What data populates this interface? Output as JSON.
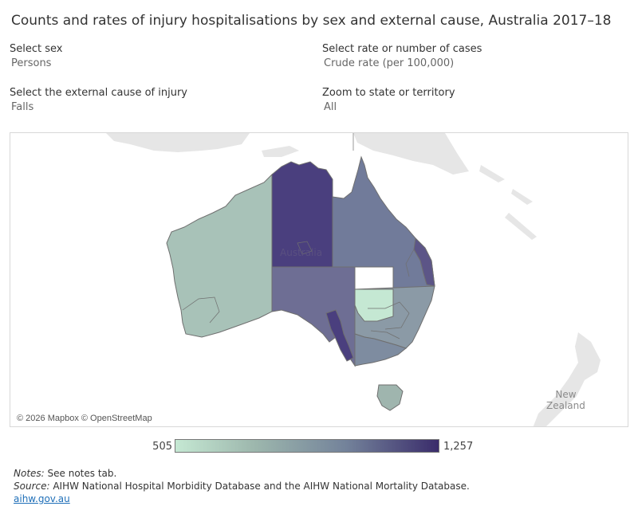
{
  "title": "Counts and rates of injury hospitalisations by sex and external cause, Australia 2017–18",
  "filters": {
    "sex": {
      "label": "Select sex",
      "value": "Persons"
    },
    "rate": {
      "label": "Select rate or number of cases",
      "value": "Crude rate (per 100,000)"
    },
    "cause": {
      "label": "Select the external cause of injury",
      "value": "Falls"
    },
    "zoom": {
      "label": "Zoom to state or territory",
      "value": "All"
    }
  },
  "map": {
    "attribution": "© 2026 Mapbox © OpenStreetMap",
    "country_label": "Australia",
    "nz_label_line1": "New",
    "nz_label_line2": "Zealand"
  },
  "legend": {
    "min": "505",
    "max": "1,257",
    "min_color": "#c5e8d3",
    "max_color": "#3a2c6b"
  },
  "notes": {
    "notes_label": "Notes:",
    "notes_text": " See notes tab.",
    "source_label": "Source:",
    "source_text": " AIHW National Hospital Morbidity Database and the AIHW National Mortality Database.",
    "link": "aihw.gov.au"
  }
}
